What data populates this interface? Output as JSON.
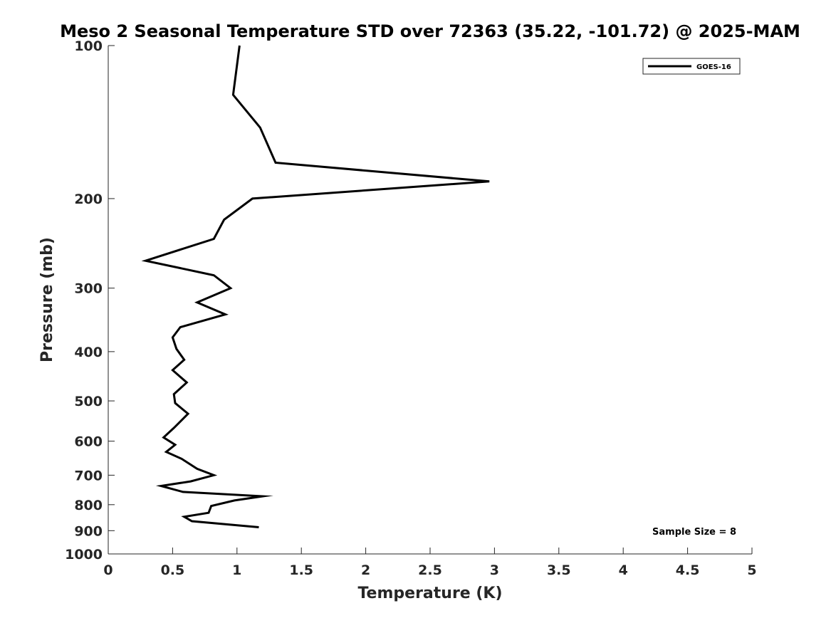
{
  "chart_data": {
    "type": "line",
    "title": "Meso 2 Seasonal Temperature STD over 72363 (35.22, -101.72) @ 2025-MAM",
    "xlabel": "Temperature (K)",
    "ylabel": "Pressure (mb)",
    "xlim": [
      0,
      5
    ],
    "ylim": [
      100,
      1000
    ],
    "y_scale": "log",
    "y_reversed": true,
    "x_ticks": [
      "0",
      "0.5",
      "1",
      "1.5",
      "2",
      "2.5",
      "3",
      "3.5",
      "4",
      "4.5",
      "5"
    ],
    "y_ticks": [
      "100",
      "200",
      "300",
      "400",
      "500",
      "600",
      "700",
      "800",
      "900",
      "1000"
    ],
    "grid": false,
    "legend_position": "top-right",
    "annotation": "Sample Size = 8",
    "series": [
      {
        "name": "GOES-16",
        "color": "#000000",
        "points": [
          [
            1.02,
            100
          ],
          [
            0.97,
            125
          ],
          [
            1.18,
            145
          ],
          [
            1.3,
            170
          ],
          [
            2.96,
            185
          ],
          [
            1.12,
            200
          ],
          [
            0.9,
            220
          ],
          [
            0.82,
            240
          ],
          [
            0.29,
            265
          ],
          [
            0.82,
            283
          ],
          [
            0.95,
            300
          ],
          [
            0.69,
            320
          ],
          [
            0.91,
            338
          ],
          [
            0.56,
            358
          ],
          [
            0.5,
            375
          ],
          [
            0.53,
            395
          ],
          [
            0.59,
            415
          ],
          [
            0.5,
            435
          ],
          [
            0.61,
            460
          ],
          [
            0.51,
            485
          ],
          [
            0.52,
            505
          ],
          [
            0.62,
            530
          ],
          [
            0.51,
            565
          ],
          [
            0.43,
            590
          ],
          [
            0.52,
            610
          ],
          [
            0.45,
            630
          ],
          [
            0.57,
            650
          ],
          [
            0.69,
            680
          ],
          [
            0.82,
            700
          ],
          [
            0.64,
            720
          ],
          [
            0.41,
            735
          ],
          [
            0.58,
            755
          ],
          [
            1.2,
            770
          ],
          [
            0.98,
            785
          ],
          [
            0.8,
            805
          ],
          [
            0.78,
            830
          ],
          [
            0.59,
            845
          ],
          [
            0.65,
            862
          ],
          [
            1.17,
            886
          ]
        ]
      }
    ]
  }
}
